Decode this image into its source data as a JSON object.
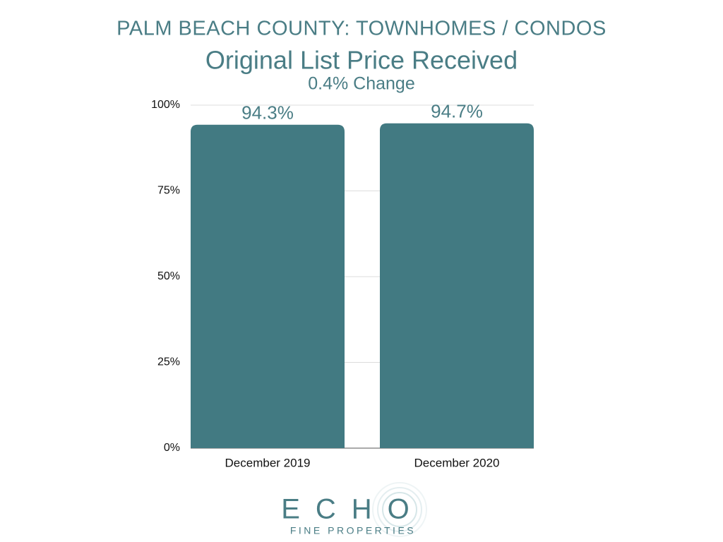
{
  "chart_data": {
    "type": "bar",
    "title": "PALM BEACH COUNTY: TOWNHOMES / CONDOS",
    "subtitle": "Original List Price Received",
    "annotation": "0.4% Change",
    "categories": [
      "December 2019",
      "December 2020"
    ],
    "values": [
      94.3,
      94.7
    ],
    "value_labels": [
      "94.3%",
      "94.7%"
    ],
    "color": "#427a82",
    "ylim": [
      0,
      100
    ],
    "yticks": [
      {
        "value": 0,
        "label": "0%"
      },
      {
        "value": 25,
        "label": "25%"
      },
      {
        "value": 50,
        "label": "50%"
      },
      {
        "value": 75,
        "label": "75%"
      },
      {
        "value": 100,
        "label": "100%"
      }
    ],
    "grid": true
  },
  "logo": {
    "name": "ECHO",
    "tagline": "FINE PROPERTIES"
  }
}
